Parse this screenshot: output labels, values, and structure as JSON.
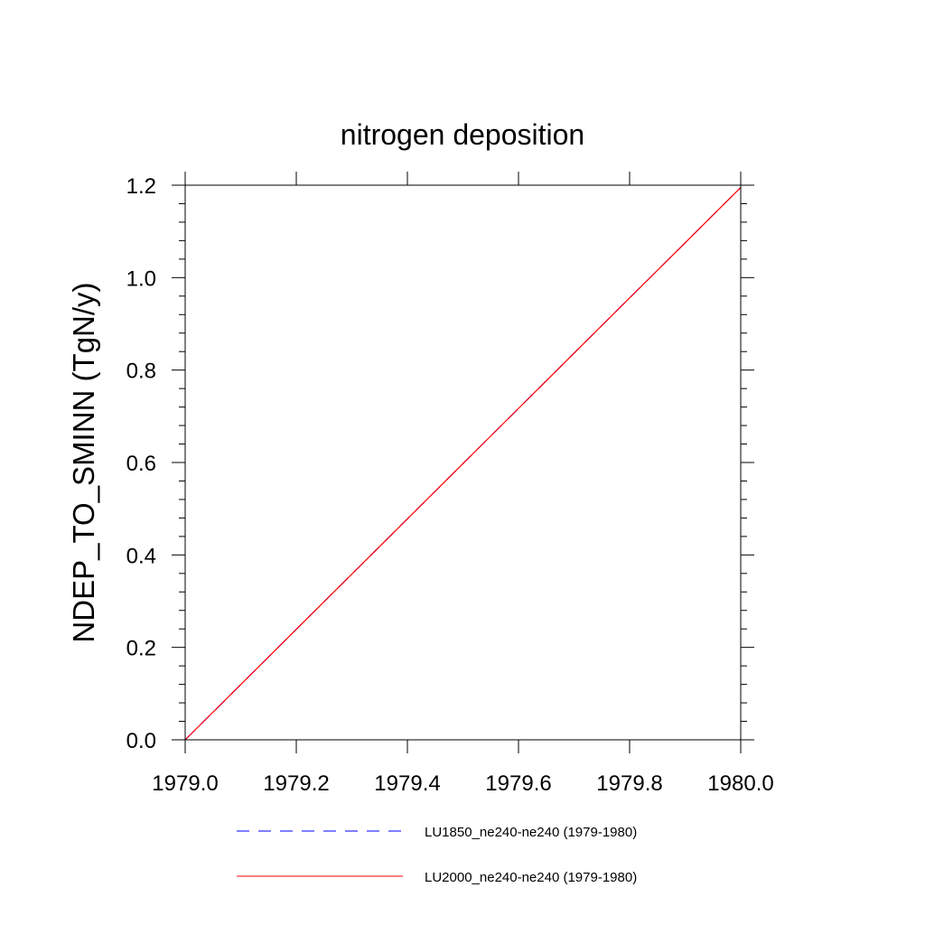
{
  "chart_data": {
    "type": "line",
    "title": "nitrogen deposition",
    "xlabel": "",
    "ylabel": "NDEP_TO_SMINN  (TgN/y)",
    "xlim": [
      1979.0,
      1980.0
    ],
    "ylim": [
      0.0,
      1.2
    ],
    "x_ticks": [
      "1979.0",
      "1979.2",
      "1979.4",
      "1979.6",
      "1979.8",
      "1980.0"
    ],
    "x_tick_values": [
      1979.0,
      1979.2,
      1979.4,
      1979.6,
      1979.8,
      1980.0
    ],
    "y_ticks": [
      "0.0",
      "0.2",
      "0.4",
      "0.6",
      "0.8",
      "1.0",
      "1.2"
    ],
    "y_tick_values": [
      0.0,
      0.2,
      0.4,
      0.6,
      0.8,
      1.0,
      1.2
    ],
    "grid": false,
    "legend_position": "bottom",
    "series": [
      {
        "name": "LU1850_ne240-ne240 (1979-1980)",
        "color": "#0000ff",
        "style": "dashed",
        "x": [
          1979.0,
          1979.2,
          1979.4,
          1979.6,
          1979.8,
          1980.0
        ],
        "values": [
          0.0,
          0.239,
          0.478,
          0.717,
          0.956,
          1.195
        ]
      },
      {
        "name": "LU2000_ne240-ne240 (1979-1980)",
        "color": "#ff0000",
        "style": "solid",
        "x": [
          1979.0,
          1979.2,
          1979.4,
          1979.6,
          1979.8,
          1980.0
        ],
        "values": [
          0.0,
          0.239,
          0.478,
          0.717,
          0.956,
          1.195
        ]
      }
    ]
  }
}
